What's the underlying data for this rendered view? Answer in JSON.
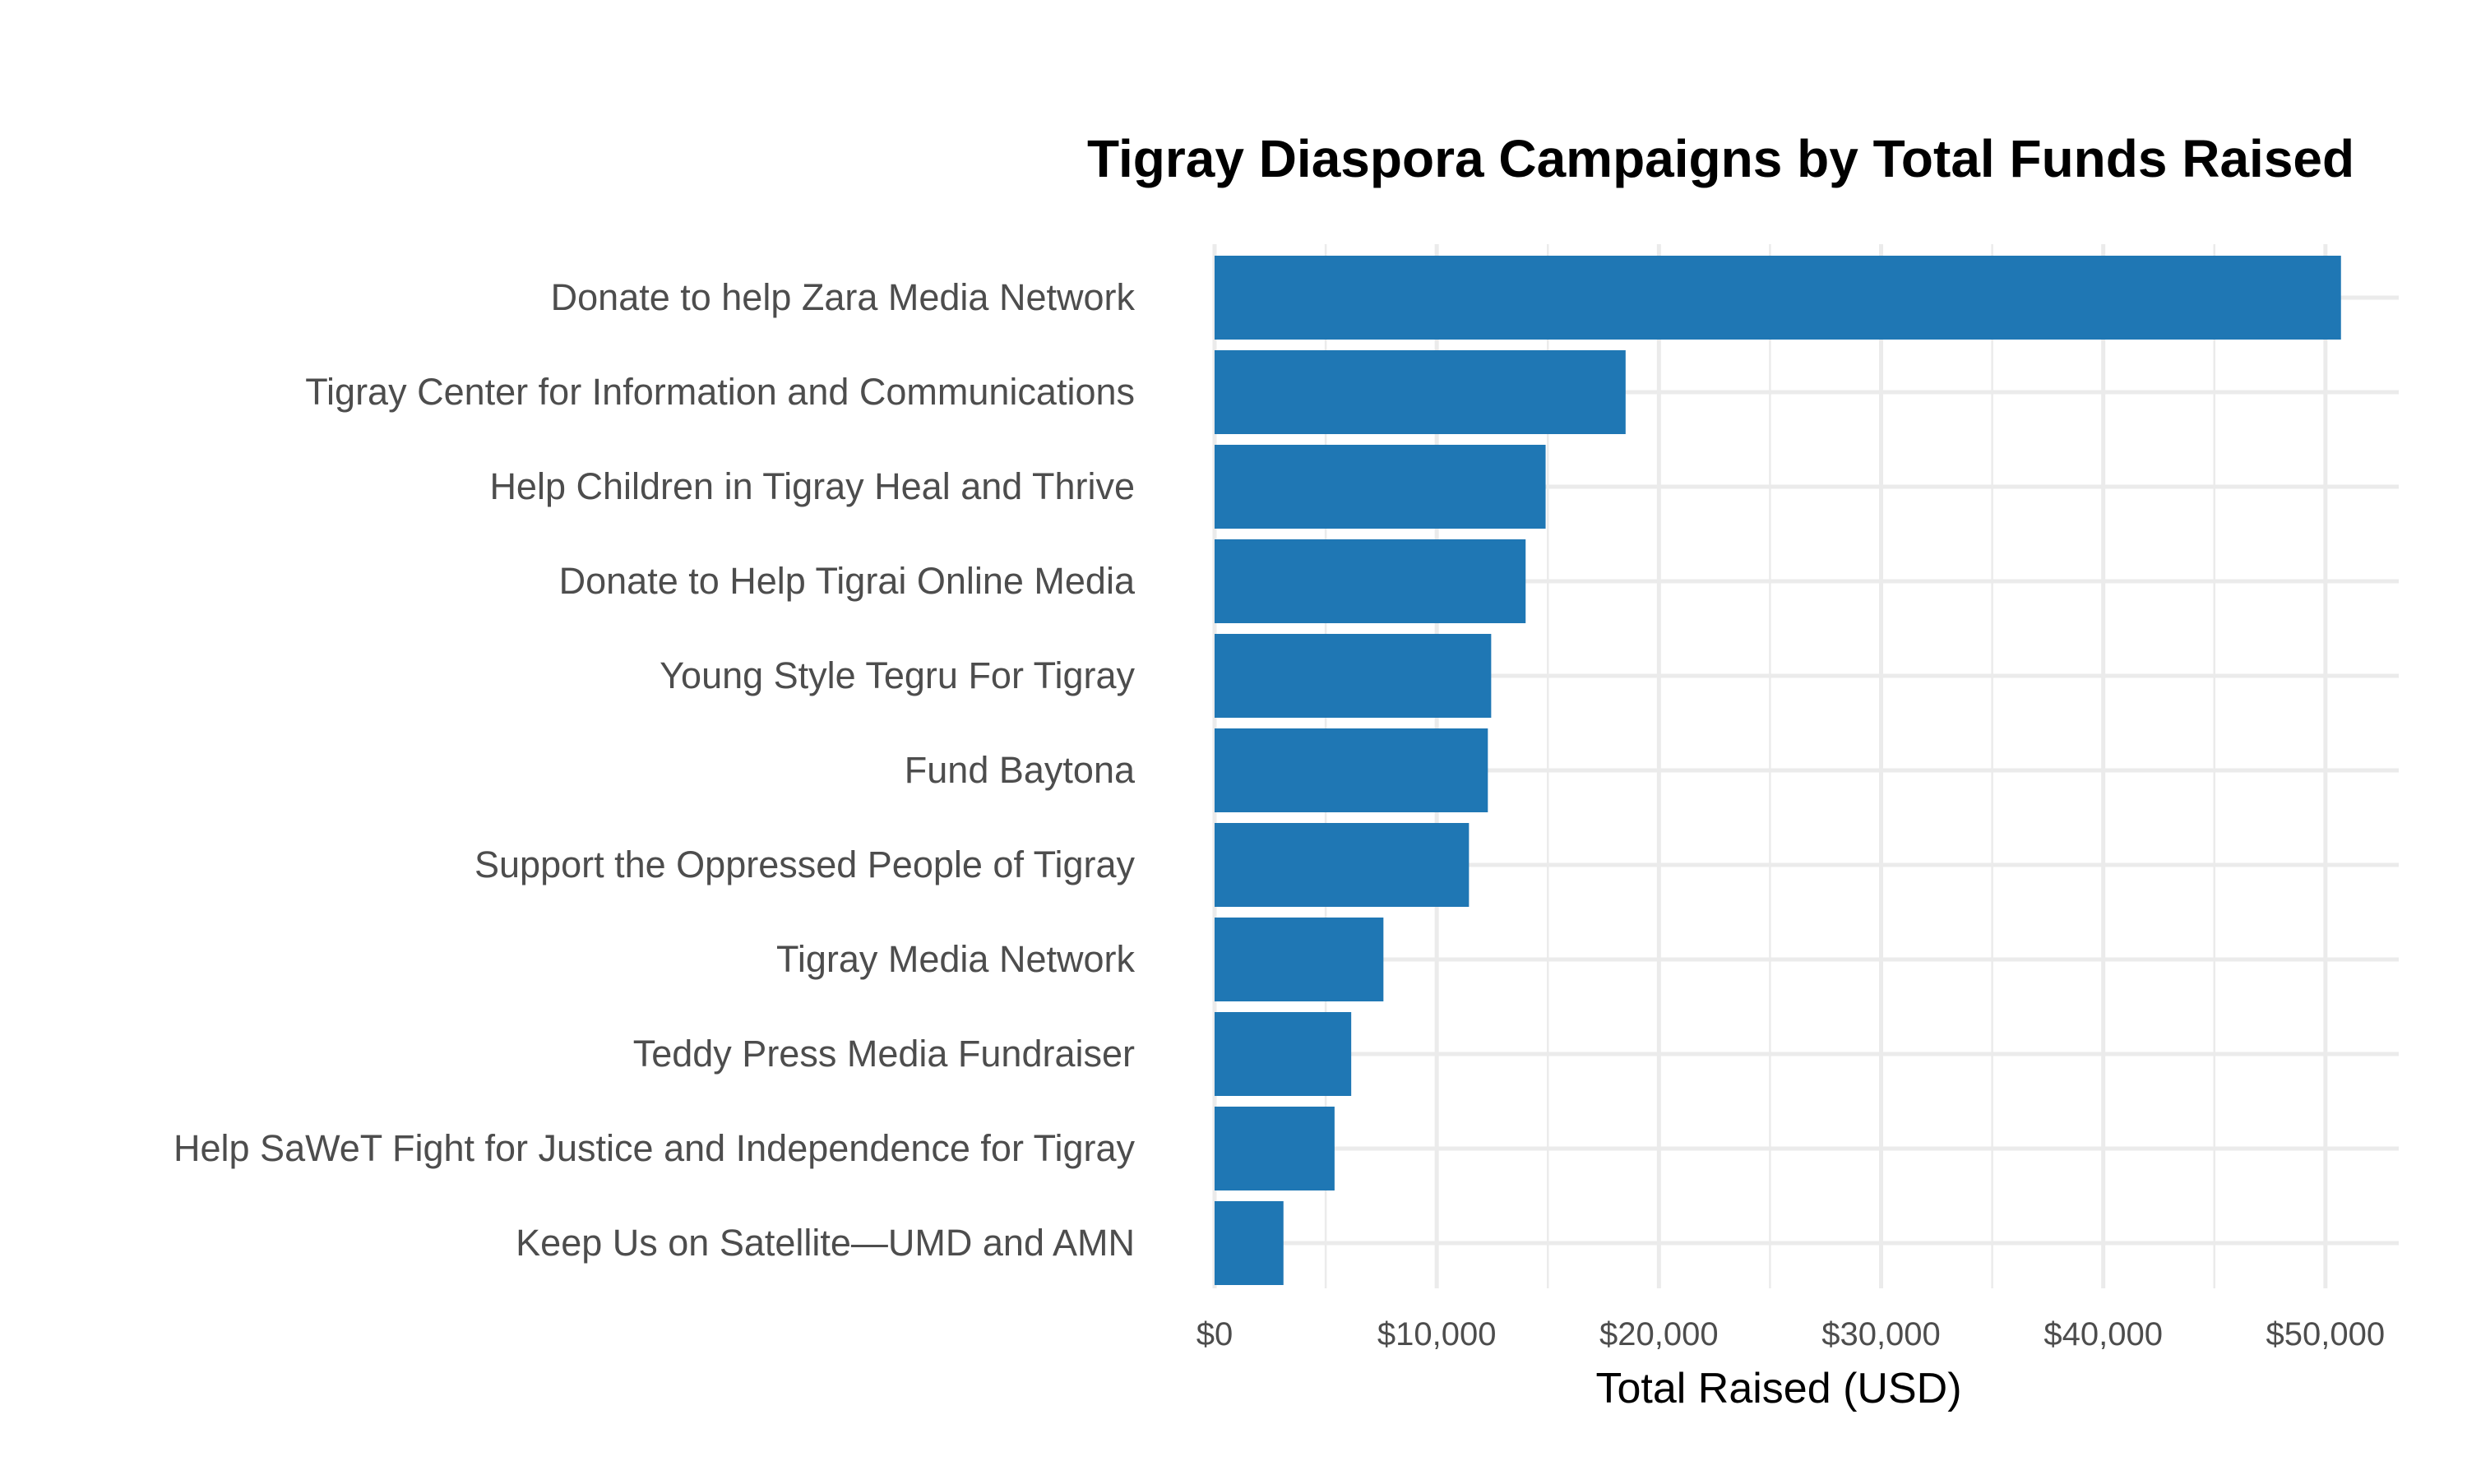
{
  "chart_data": {
    "type": "bar",
    "orientation": "horizontal",
    "title": "Tigray Diaspora Campaigns by Total Funds Raised",
    "xlabel": "Total Raised (USD)",
    "ylabel": "",
    "categories": [
      "Donate to help Zara Media Network",
      "Tigray Center for Information and Communications",
      "Help Children in Tigray Heal and Thrive",
      "Donate to Help Tigrai Online Media",
      "Young Style Tegru For Tigray",
      "Fund Baytona",
      "Support the Oppressed People of Tigray",
      "Tigray Media Network",
      "Teddy Press Media Fundraiser",
      "Help SaWeT Fight for Justice and Independence for Tigray",
      "Keep Us on Satellite—UMD and AMN"
    ],
    "values": [
      50700,
      18500,
      14900,
      14000,
      12450,
      12300,
      11450,
      7600,
      6150,
      5400,
      3100
    ],
    "xlim": [
      0,
      53300
    ],
    "x_ticks": [
      0,
      10000,
      20000,
      30000,
      40000,
      50000
    ],
    "x_tick_labels": [
      "$0",
      "$10,000",
      "$20,000",
      "$30,000",
      "$40,000",
      "$50,000"
    ],
    "bar_color": "#1f77b4",
    "grid": true,
    "legend": "none"
  }
}
